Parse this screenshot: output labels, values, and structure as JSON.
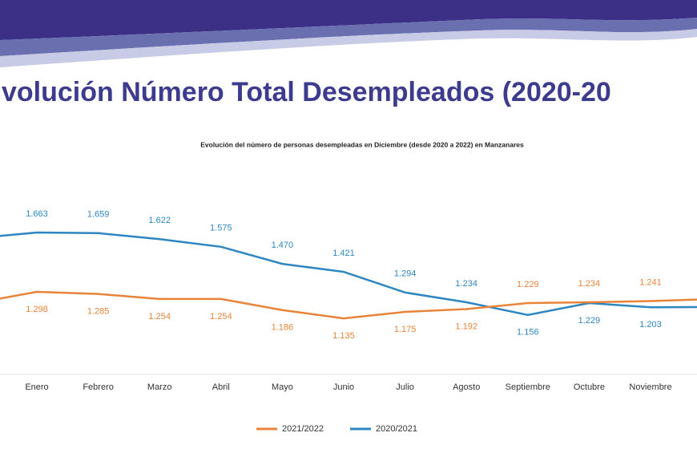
{
  "chart_data": {
    "type": "line",
    "title": "volución Número Total Desempleados (2020-20",
    "subtitle": "Evolución del número de personas desempleadas en Diciembre (desde 2020 a 2022) en Manzanares",
    "categories": [
      null,
      "Enero",
      "Febrero",
      "Marzo",
      "Abril",
      "Mayo",
      "Junio",
      "Julio",
      "Agosto",
      "Septiembre",
      "Octubre",
      "Noviembre",
      null
    ],
    "series": [
      {
        "name": "2020/2021",
        "color": "#2e86c1",
        "values": [
          1628,
          1663,
          1659,
          1622,
          1575,
          1470,
          1421,
          1294,
          1234,
          1156,
          1229,
          1203,
          1205
        ],
        "value_labels": [
          null,
          "1.663",
          "1.659",
          "1.622",
          "1.575",
          "1.470",
          "1.421",
          "1.294",
          "1.234",
          "1.156",
          "1.229",
          "1.203",
          null
        ]
      },
      {
        "name": "2021/2022",
        "color": "#e8833a",
        "values": [
          1229,
          1298,
          1285,
          1254,
          1254,
          1186,
          1135,
          1175,
          1192,
          1229,
          1234,
          1241,
          1254
        ],
        "value_labels": [
          null,
          "1.298",
          "1.285",
          "1.254",
          "1.254",
          "1.186",
          "1.135",
          "1.175",
          "1.192",
          "1.229",
          "1.234",
          "1.241",
          null
        ]
      }
    ]
  }
}
